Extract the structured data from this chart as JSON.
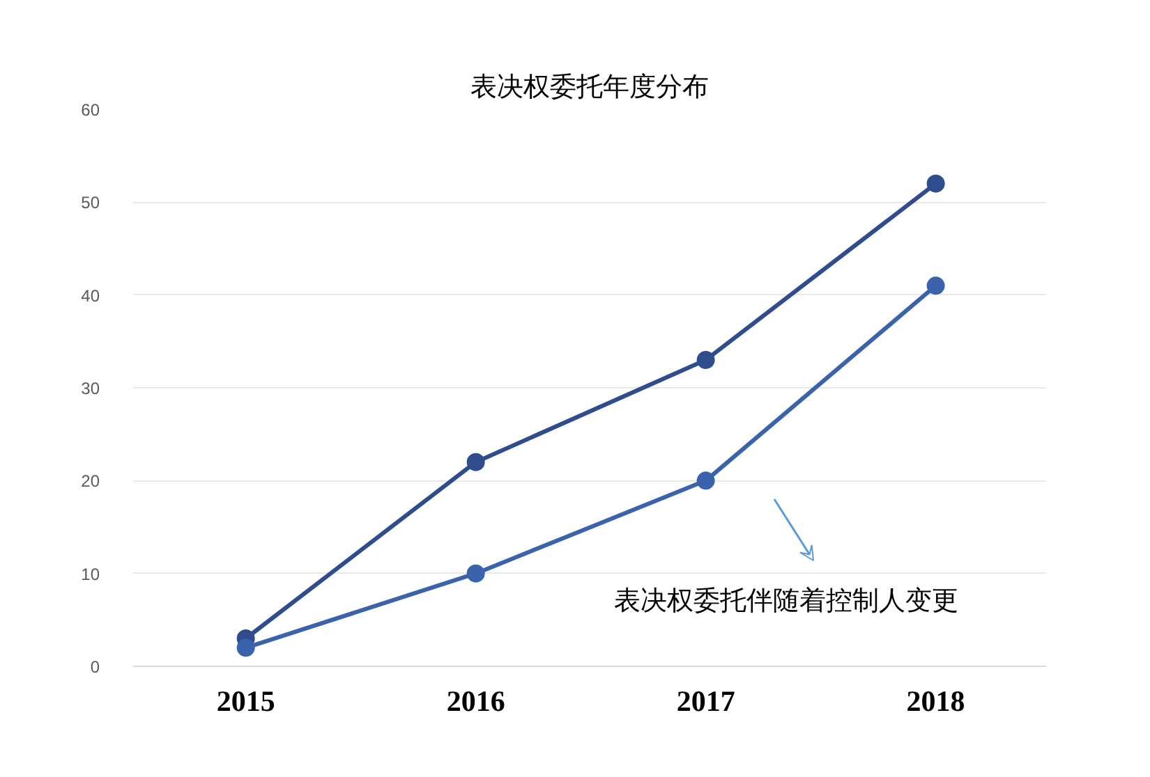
{
  "chart_data": {
    "type": "line",
    "title": "表决权委托年度分布",
    "categories": [
      "2015",
      "2016",
      "2017",
      "2018"
    ],
    "series": [
      {
        "color": "#2f4d8c",
        "values": [
          3,
          22,
          33,
          52
        ]
      },
      {
        "color": "#3a63ab",
        "values": [
          2,
          10,
          20,
          41
        ]
      }
    ],
    "ylim": [
      0,
      60
    ],
    "yticks": [
      0,
      10,
      20,
      30,
      40,
      50,
      60
    ],
    "grid": "y",
    "marker": "circle",
    "line_style": "solid",
    "annotations": [
      "表决权委托伴随着控制人变更"
    ]
  }
}
